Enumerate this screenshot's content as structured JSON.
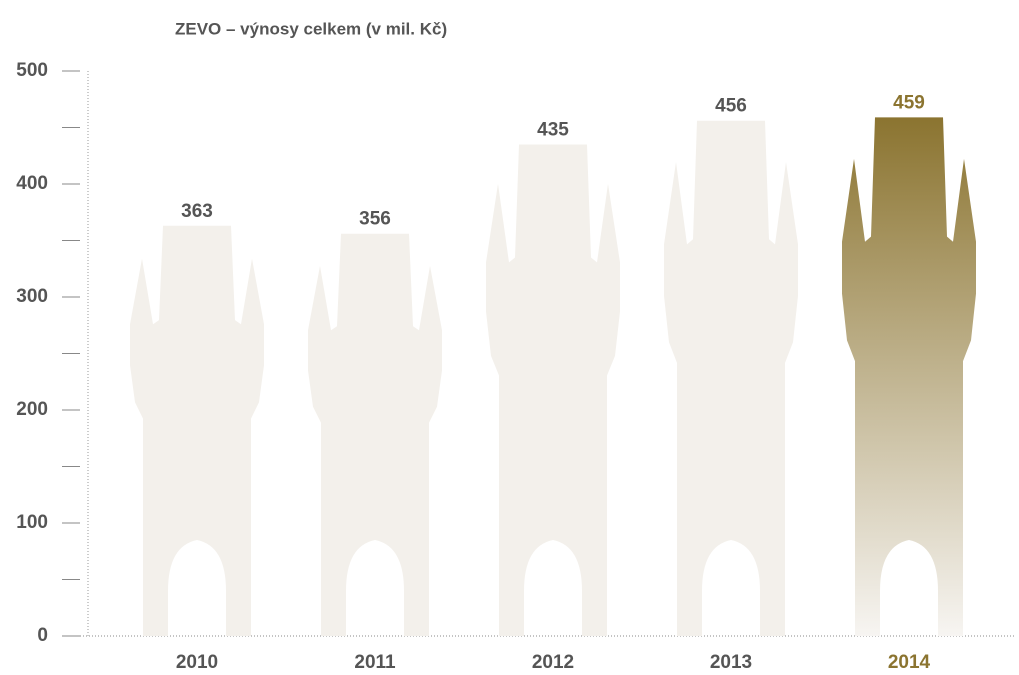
{
  "chart_data": {
    "type": "pictogram-bar",
    "title": "ZEVO – výnosy celkem (v mil. Kč)",
    "categories": [
      "2010",
      "2011",
      "2012",
      "2013",
      "2014"
    ],
    "values": [
      363,
      356,
      435,
      456,
      459
    ],
    "color": "#f3f0eb",
    "highlight_index": 4,
    "highlight_color": "#8b7430",
    "ylim": [
      0,
      500
    ],
    "yticks": [
      0,
      100,
      200,
      300,
      400,
      500
    ],
    "minor_yticks": [
      50,
      150,
      250,
      350,
      450
    ]
  }
}
